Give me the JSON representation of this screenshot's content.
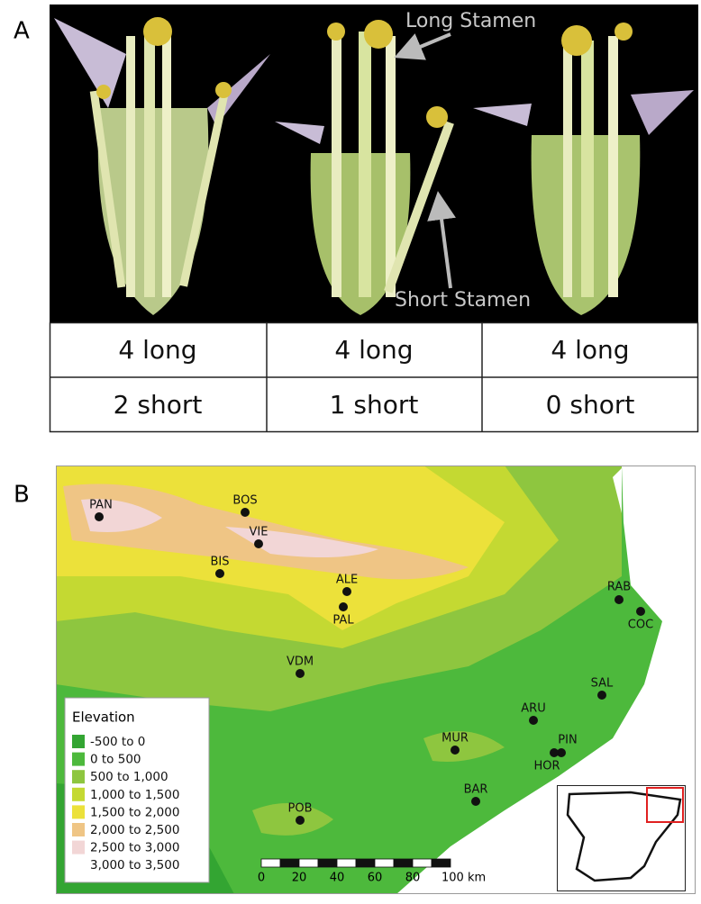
{
  "panel_a": {
    "label": "A",
    "annotations": [
      "Long Stamen",
      "Short Stamen"
    ],
    "table": {
      "rows": [
        [
          "4 long",
          "4 long",
          "4 long"
        ],
        [
          "2 short",
          "1 short",
          "0 short"
        ]
      ]
    }
  },
  "panel_b": {
    "label": "B",
    "sites": [
      "PAN",
      "BOS",
      "VIE",
      "BIS",
      "ALE",
      "PAL",
      "RAB",
      "COC",
      "VDM",
      "SAL",
      "ARU",
      "MUR",
      "PIN",
      "HOR",
      "BAR",
      "POB"
    ],
    "legend": {
      "title": "Elevation",
      "items": [
        {
          "label": "-500 to 0",
          "color": "#33a532"
        },
        {
          "label": "0 to 500",
          "color": "#4db93c"
        },
        {
          "label": "500 to 1,000",
          "color": "#8ec63f"
        },
        {
          "label": "1,000 to 1,500",
          "color": "#c4d932"
        },
        {
          "label": "1,500 to 2,000",
          "color": "#ece13a"
        },
        {
          "label": "2,000 to 2,500",
          "color": "#efc585"
        },
        {
          "label": "2,500 to 3,000",
          "color": "#f2d6d6"
        },
        {
          "label": "3,000 to 3,500",
          "color": "#ffffff"
        }
      ]
    },
    "scale_bar": {
      "labels": [
        "0",
        "20",
        "40",
        "60",
        "80",
        "100 km"
      ]
    }
  }
}
